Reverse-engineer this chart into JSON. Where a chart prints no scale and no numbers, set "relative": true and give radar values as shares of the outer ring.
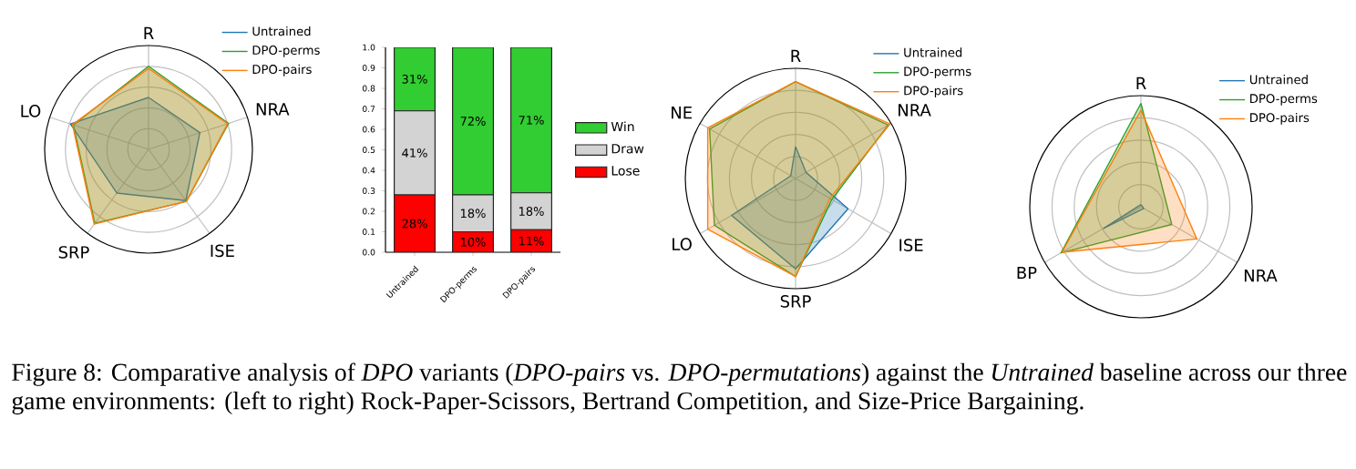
{
  "chart_data": [
    {
      "type": "radar",
      "relative": true,
      "categories": [
        "R",
        "NRA",
        "ISE",
        "SRP",
        "LO"
      ],
      "grid": true,
      "legend": "top right",
      "annotations": [
        "Figure 8: Comparative analysis of *DPO* variants (*DPO-pairs* vs. *DPO-permutations*) against the *Untrained* baseline across our three game environments: (left to right) Rock-Paper-Scissors, Bertrand Competition, and Size-Price Bargaining."
      ],
      "series": [
        {
          "name": "Untrained",
          "color": "#1f77b4",
          "values": [
            0.5,
            0.52,
            0.61,
            0.52,
            0.79
          ]
        },
        {
          "name": "DPO-perms",
          "color": "#2ca02c",
          "values": [
            0.8,
            0.81,
            0.62,
            0.88,
            0.76
          ]
        },
        {
          "name": "DPO-pairs",
          "color": "#ff7f0e",
          "values": [
            0.78,
            0.8,
            0.62,
            0.89,
            0.77
          ]
        }
      ]
    },
    {
      "type": "bar",
      "stacked": true,
      "categories": [
        "Untrained",
        "DPO-perms",
        "DPO-pairs"
      ],
      "legend": "right",
      "ylim": [
        0,
        1
      ],
      "yticks": [
        {
          "value": 0,
          "label": "0.0"
        },
        {
          "value": 0.1,
          "label": "0.1"
        },
        {
          "value": 0.2,
          "label": "0.2"
        },
        {
          "value": 0.3,
          "label": "0.3"
        },
        {
          "value": 0.4,
          "label": "0.4"
        },
        {
          "value": 0.5,
          "label": "0.5"
        },
        {
          "value": 0.6,
          "label": "0.6"
        },
        {
          "value": 0.7,
          "label": "0.7"
        },
        {
          "value": 0.8,
          "label": "0.8"
        },
        {
          "value": 0.9,
          "label": "0.9"
        },
        {
          "value": 1,
          "label": "1.0"
        }
      ],
      "series": [
        {
          "name": "Lose",
          "color": "#ff0000",
          "values": [
            0.28,
            0.1,
            0.11
          ],
          "value_labels": [
            "28%",
            "10%",
            "11%"
          ]
        },
        {
          "name": "Draw",
          "color": "#d3d3d3",
          "values": [
            0.41,
            0.18,
            0.18
          ],
          "value_labels": [
            "41%",
            "18%",
            "18%"
          ]
        },
        {
          "name": "Win",
          "color": "#32cd32",
          "values": [
            0.31,
            0.72,
            0.71
          ],
          "value_labels": [
            "31%",
            "72%",
            "71%"
          ]
        }
      ]
    },
    {
      "type": "radar",
      "relative": true,
      "categories": [
        "R",
        "NRA",
        "ISE",
        "SRP",
        "LO",
        "NE"
      ],
      "grid": true,
      "legend": "top right",
      "series": [
        {
          "name": "Untrained",
          "color": "#1f77b4",
          "values": [
            0.29,
            0.11,
            0.55,
            0.82,
            0.67,
            0.05
          ]
        },
        {
          "name": "DPO-perms",
          "color": "#2ca02c",
          "values": [
            0.88,
            0.97,
            0.38,
            0.89,
            0.85,
            0.9
          ]
        },
        {
          "name": "DPO-pairs",
          "color": "#ff7f0e",
          "values": [
            0.88,
            0.99,
            0.36,
            0.89,
            0.92,
            0.92
          ]
        }
      ]
    },
    {
      "type": "radar",
      "relative": true,
      "categories": [
        "R",
        "NRA",
        "BP"
      ],
      "grid": true,
      "legend": "top right",
      "series": [
        {
          "name": "Untrained",
          "color": "#1f77b4",
          "values": [
            0.02,
            0.03,
            0.39
          ]
        },
        {
          "name": "DPO-perms",
          "color": "#2ca02c",
          "values": [
            0.93,
            0.32,
            0.83
          ]
        },
        {
          "name": "DPO-pairs",
          "color": "#ff7f0e",
          "values": [
            0.87,
            0.58,
            0.82
          ]
        }
      ]
    }
  ]
}
